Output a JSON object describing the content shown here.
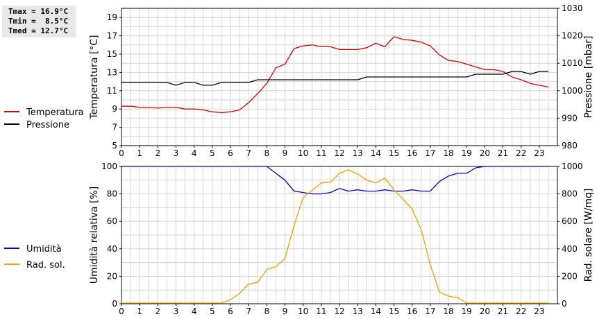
{
  "stats": {
    "tmax": "Tmax = 16.9°C",
    "tmin": "Tmin =  8.5°C",
    "tmed": "Tmed = 12.7°C"
  },
  "chart_data": [
    {
      "type": "line",
      "x_label_ticks": [
        "0",
        "1",
        "2",
        "3",
        "4",
        "5",
        "6",
        "7",
        "8",
        "9",
        "10",
        "11",
        "12",
        "13",
        "14",
        "15",
        "16",
        "17",
        "18",
        "19",
        "20",
        "21",
        "22",
        "23"
      ],
      "xlim": [
        0,
        24
      ],
      "ylabel_left": "Temperatura [°C]",
      "ylim_left": [
        5,
        20
      ],
      "yticks_left": [
        "5",
        "7",
        "9",
        "11",
        "13",
        "15",
        "17",
        "19"
      ],
      "ylabel_right": "Pressione [mbar]",
      "ylim_right": [
        980,
        1030
      ],
      "yticks_right": [
        "980",
        "990",
        "1000",
        "1010",
        "1020",
        "1030"
      ],
      "grid": true,
      "legend_position": "left",
      "series": [
        {
          "name": "Temperatura",
          "color": "#dd0000",
          "axis": "left",
          "x": [
            0,
            0.5,
            1,
            1.5,
            2,
            2.5,
            3,
            3.5,
            4,
            4.5,
            5,
            5.5,
            6,
            6.5,
            7,
            7.5,
            8,
            8.5,
            9,
            9.5,
            10,
            10.5,
            11,
            11.5,
            12,
            12.5,
            13,
            13.5,
            14,
            14.5,
            15,
            15.5,
            16,
            16.5,
            17,
            17.5,
            18,
            18.5,
            19,
            19.5,
            20,
            20.5,
            21,
            21.5,
            22,
            22.5,
            23,
            23.5
          ],
          "y": [
            9.3,
            9.3,
            9.2,
            9.2,
            9.1,
            9.2,
            9.2,
            9.0,
            9.0,
            8.9,
            8.7,
            8.6,
            8.7,
            8.9,
            9.7,
            10.7,
            11.8,
            13.5,
            13.9,
            15.6,
            15.9,
            16.0,
            15.8,
            15.8,
            15.5,
            15.5,
            15.5,
            15.7,
            16.2,
            15.8,
            16.9,
            16.6,
            16.5,
            16.3,
            15.9,
            14.9,
            14.3,
            14.2,
            13.9,
            13.6,
            13.3,
            13.3,
            13.1,
            12.5,
            12.2,
            11.8,
            11.6,
            11.4
          ]
        },
        {
          "name": "Pressione",
          "color": "#000000",
          "axis": "right",
          "x": [
            0,
            0.5,
            1,
            1.5,
            2,
            2.5,
            3,
            3.5,
            4,
            4.5,
            5,
            5.5,
            6,
            6.5,
            7,
            7.5,
            8,
            8.5,
            9,
            9.5,
            10,
            10.5,
            11,
            11.5,
            12,
            12.5,
            13,
            13.5,
            14,
            14.5,
            15,
            15.5,
            16,
            16.5,
            17,
            17.5,
            18,
            18.5,
            19,
            19.5,
            20,
            20.5,
            21,
            21.5,
            22,
            22.5,
            23,
            23.5
          ],
          "y": [
            1003,
            1003,
            1003,
            1003,
            1003,
            1003,
            1002,
            1003,
            1003,
            1002,
            1002,
            1003,
            1003,
            1003,
            1003,
            1004,
            1004,
            1004,
            1004,
            1004,
            1004,
            1004,
            1004,
            1004,
            1004,
            1004,
            1004,
            1005,
            1005,
            1005,
            1005,
            1005,
            1005,
            1005,
            1005,
            1005,
            1005,
            1005,
            1005,
            1006,
            1006,
            1006,
            1006,
            1007,
            1007,
            1006,
            1007,
            1007
          ]
        }
      ]
    },
    {
      "type": "line",
      "x_label_ticks": [
        "0",
        "1",
        "2",
        "3",
        "4",
        "5",
        "6",
        "7",
        "8",
        "9",
        "10",
        "11",
        "12",
        "13",
        "14",
        "15",
        "16",
        "17",
        "18",
        "19",
        "20",
        "21",
        "22",
        "23"
      ],
      "xlim": [
        0,
        24
      ],
      "ylabel_left": "Umidità relativa [%]",
      "ylim_left": [
        0,
        100
      ],
      "yticks_left": [
        "0",
        "20",
        "40",
        "60",
        "80",
        "100"
      ],
      "ylabel_right": "Rad. solare [W/mq]",
      "ylim_right": [
        0,
        1000
      ],
      "yticks_right": [
        "0",
        "200",
        "400",
        "600",
        "800",
        "1000"
      ],
      "grid": true,
      "legend_position": "left",
      "series": [
        {
          "name": "Umidità",
          "color": "#0000cc",
          "axis": "left",
          "x": [
            0,
            0.5,
            1,
            1.5,
            2,
            2.5,
            3,
            3.5,
            4,
            4.5,
            5,
            5.5,
            6,
            6.5,
            7,
            7.5,
            8,
            8.5,
            9,
            9.5,
            10,
            10.5,
            11,
            11.5,
            12,
            12.5,
            13,
            13.5,
            14,
            14.5,
            15,
            15.5,
            16,
            16.5,
            17,
            17.5,
            18,
            18.5,
            19,
            19.5,
            20,
            20.5,
            21,
            21.5,
            22,
            22.5,
            23,
            23.5
          ],
          "y": [
            100,
            100,
            100,
            100,
            100,
            100,
            100,
            100,
            100,
            100,
            100,
            100,
            100,
            100,
            100,
            100,
            100,
            95,
            90,
            82,
            81,
            80,
            80,
            81,
            84,
            82,
            83,
            82,
            82,
            83,
            82,
            82,
            83,
            82,
            82,
            89,
            93,
            95,
            95,
            99,
            100,
            100,
            100,
            100,
            100,
            100,
            100,
            100
          ]
        },
        {
          "name": "Rad. sol.",
          "color": "#f0a000",
          "axis": "right",
          "x": [
            0,
            0.5,
            1,
            1.5,
            2,
            2.5,
            3,
            3.5,
            4,
            4.5,
            5,
            5.5,
            6,
            6.5,
            7,
            7.5,
            8,
            8.5,
            9,
            9.5,
            10,
            10.5,
            11,
            11.5,
            12,
            12.5,
            13,
            13.5,
            14,
            14.5,
            15,
            15.5,
            16,
            16.5,
            17,
            17.5,
            18,
            18.5,
            19,
            19.5,
            20,
            20.5,
            21,
            21.5,
            22,
            22.5,
            23,
            23.5
          ],
          "y": [
            5,
            5,
            5,
            5,
            5,
            5,
            5,
            5,
            5,
            5,
            5,
            5,
            30,
            75,
            145,
            155,
            250,
            270,
            330,
            570,
            775,
            825,
            880,
            885,
            950,
            975,
            945,
            900,
            880,
            915,
            830,
            760,
            690,
            540,
            285,
            85,
            55,
            45,
            5,
            5,
            5,
            5,
            5,
            5,
            5,
            5,
            5,
            5
          ]
        }
      ]
    }
  ]
}
